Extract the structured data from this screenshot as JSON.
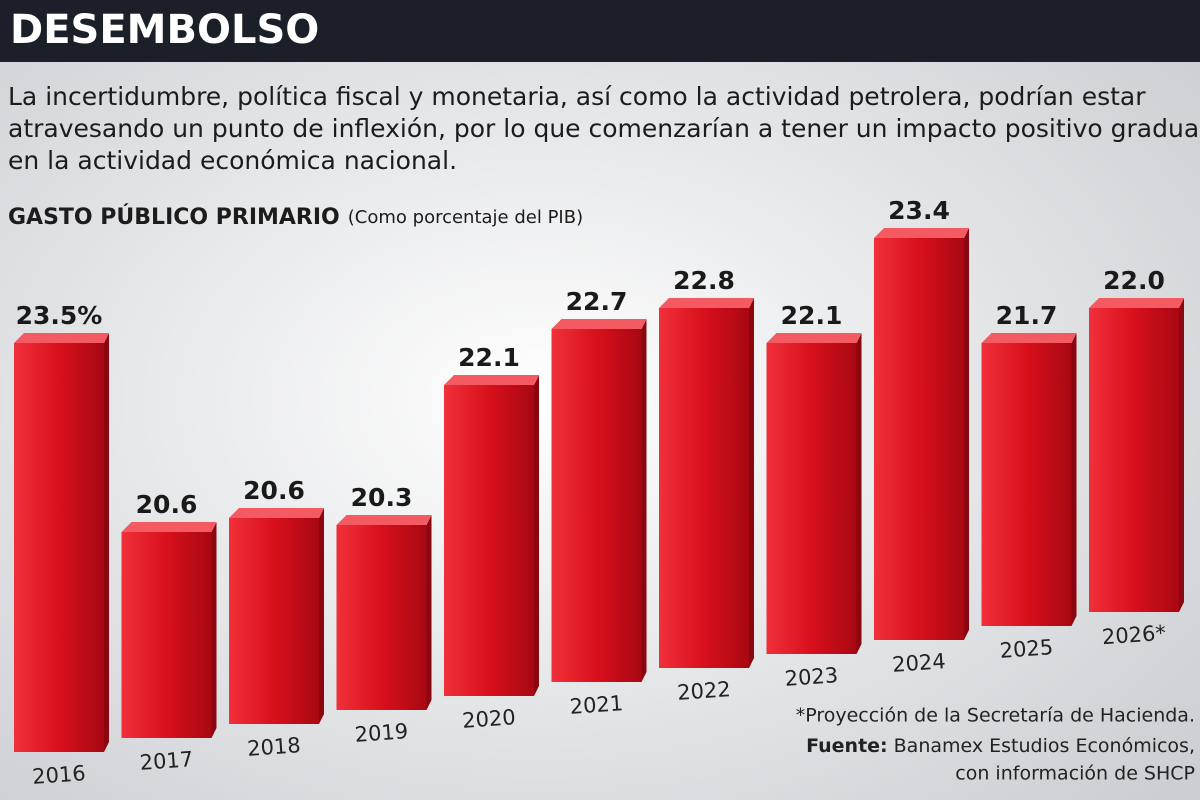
{
  "chart_data": {
    "type": "bar",
    "title": "DESEMBOLSO",
    "subtitle": [
      "La incertidumbre, política fiscal y monetaria, así como la actividad petrolera, podrían estar",
      "atravesando un punto de inflexión, por lo que comenzarían a tener un impacto positivo gradual",
      "en la actividad económica nacional."
    ],
    "chart_title": "GASTO PÚBLICO PRIMARIO",
    "chart_subtitle": "(Como porcentaje del PIB)",
    "categories": [
      "2016",
      "2017",
      "2018",
      "2019",
      "2020",
      "2021",
      "2022",
      "2023",
      "2024",
      "2025",
      "2026*"
    ],
    "values": [
      23.5,
      20.6,
      20.6,
      20.3,
      22.1,
      22.7,
      22.8,
      22.1,
      23.4,
      21.7,
      22.0
    ],
    "value_labels": [
      "23.5%",
      "20.6",
      "20.6",
      "20.3",
      "22.1",
      "22.7",
      "22.8",
      "22.1",
      "23.4",
      "21.7",
      "22.0"
    ],
    "color": "#d8101c",
    "note": "*Proyección de la Secretaría de Hacienda.",
    "source_label": "Fuente:",
    "source": [
      "Banamex Estudios Económicos,",
      "con información de SHCP"
    ]
  }
}
